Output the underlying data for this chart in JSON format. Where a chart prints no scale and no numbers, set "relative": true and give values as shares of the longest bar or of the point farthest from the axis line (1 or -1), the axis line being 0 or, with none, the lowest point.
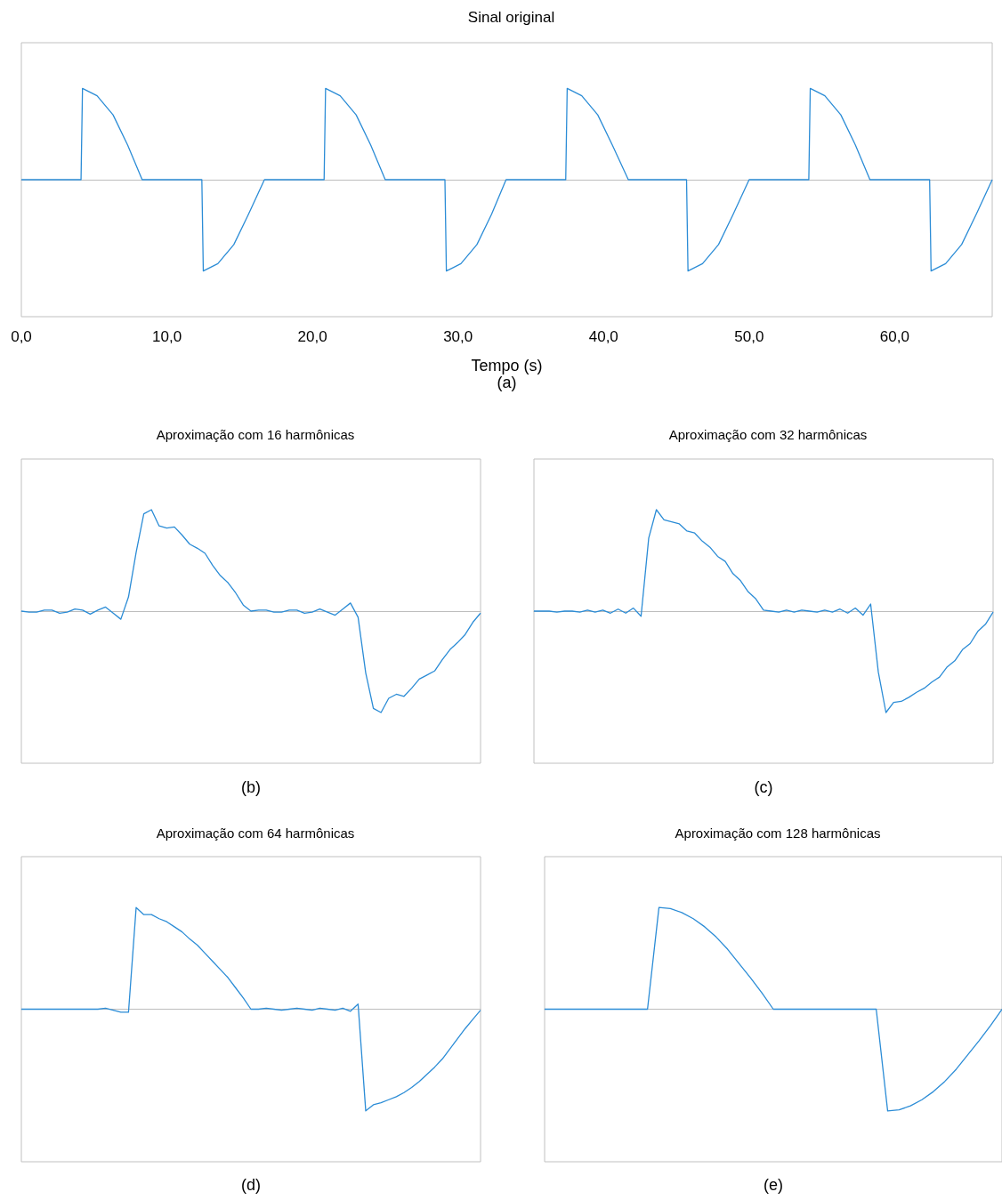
{
  "chart_data": [
    {
      "type": "line",
      "title": "Sinal original",
      "xlabel": "Tempo (s)",
      "annotations": [
        "(a)"
      ],
      "relative": true,
      "tick_labels": "x",
      "color": "#2b8cd6",
      "xlim": [
        0,
        66.7
      ],
      "xticks": [
        {
          "value": 0,
          "label": "0,0"
        },
        {
          "value": 10,
          "label": "10,0"
        },
        {
          "value": 20,
          "label": "20,0"
        },
        {
          "value": 30,
          "label": "30,0"
        },
        {
          "value": 40,
          "label": "40,0"
        },
        {
          "value": 50,
          "label": "50,0"
        },
        {
          "value": 60,
          "label": "60,0"
        }
      ],
      "x": [
        0,
        4.1,
        4.2,
        5.2,
        6.3,
        7.3,
        8.3,
        12.4,
        12.5,
        13.5,
        14.6,
        15.6,
        16.7,
        20.8,
        20.9,
        21.9,
        23.0,
        24.0,
        25.0,
        29.1,
        29.2,
        30.2,
        31.3,
        32.3,
        33.3,
        37.4,
        37.5,
        38.5,
        39.6,
        40.6,
        41.7,
        45.7,
        45.8,
        46.8,
        47.9,
        48.9,
        50.0,
        54.1,
        54.2,
        55.2,
        56.3,
        57.3,
        58.3,
        62.4,
        62.5,
        63.5,
        64.6,
        65.6,
        66.7
      ],
      "values": [
        0,
        0,
        1,
        0.92,
        0.71,
        0.38,
        0,
        0,
        -1,
        -0.92,
        -0.71,
        -0.38,
        0,
        0,
        1,
        0.92,
        0.71,
        0.38,
        0,
        0,
        -1,
        -0.92,
        -0.71,
        -0.38,
        0,
        0,
        1,
        0.92,
        0.71,
        0.38,
        0,
        0,
        -1,
        -0.92,
        -0.71,
        -0.38,
        0,
        0,
        1,
        0.92,
        0.71,
        0.38,
        0,
        0,
        -1,
        -0.92,
        -0.71,
        -0.38,
        0
      ]
    },
    {
      "type": "line",
      "title": "Aproximação com 16 harmônicas",
      "annotations": [
        "(b)"
      ],
      "relative": true,
      "tick_labels": false,
      "color": "#2b8cd6",
      "categories": [
        null,
        null,
        null,
        null,
        null,
        null,
        null,
        null,
        null,
        null,
        null,
        null,
        null,
        null,
        null,
        null,
        null,
        null,
        null,
        null,
        null,
        null,
        null,
        null,
        null,
        null,
        null,
        null,
        null,
        null,
        null,
        null,
        null,
        null,
        null,
        null,
        null,
        null,
        null,
        null,
        null,
        null,
        null,
        null,
        null,
        null,
        null,
        null,
        null,
        null,
        null,
        null,
        null,
        null,
        null,
        null,
        null,
        null,
        null,
        null,
        null
      ],
      "values": [
        0,
        -0.01,
        -0.01,
        0.01,
        0.01,
        -0.02,
        -0.01,
        0.02,
        0.01,
        -0.03,
        0.01,
        0.04,
        -0.02,
        -0.08,
        0.14,
        0.58,
        0.96,
        1,
        0.84,
        0.82,
        0.83,
        0.75,
        0.66,
        0.62,
        0.57,
        0.45,
        0.35,
        0.28,
        0.18,
        0.06,
        0,
        0.01,
        0.01,
        -0.01,
        -0.01,
        0.01,
        0.01,
        -0.02,
        -0.01,
        0.02,
        -0.01,
        -0.04,
        0.02,
        0.08,
        -0.06,
        -0.61,
        -0.96,
        -1,
        -0.86,
        -0.82,
        -0.84,
        -0.76,
        -0.67,
        -0.63,
        -0.59,
        -0.48,
        -0.38,
        -0.31,
        -0.23,
        -0.11,
        -0.02
      ]
    },
    {
      "type": "line",
      "title": "Aproximação com 32 harmônicas",
      "annotations": [
        "(c)"
      ],
      "relative": true,
      "tick_labels": false,
      "color": "#2b8cd6",
      "categories": [
        null,
        null,
        null,
        null,
        null,
        null,
        null,
        null,
        null,
        null,
        null,
        null,
        null,
        null,
        null,
        null,
        null,
        null,
        null,
        null,
        null,
        null,
        null,
        null,
        null,
        null,
        null,
        null,
        null,
        null,
        null,
        null,
        null,
        null,
        null,
        null,
        null,
        null,
        null,
        null,
        null,
        null,
        null,
        null,
        null,
        null,
        null,
        null,
        null,
        null,
        null,
        null,
        null,
        null,
        null,
        null,
        null,
        null,
        null,
        null,
        null
      ],
      "values": [
        0,
        0,
        0,
        -0.01,
        0,
        0,
        -0.01,
        0.01,
        -0.01,
        0.01,
        -0.02,
        0.02,
        -0.02,
        0.03,
        -0.05,
        0.72,
        1,
        0.9,
        0.88,
        0.86,
        0.79,
        0.77,
        0.69,
        0.63,
        0.54,
        0.49,
        0.37,
        0.3,
        0.19,
        0.12,
        0.01,
        0,
        -0.01,
        0.01,
        -0.01,
        0.01,
        0,
        -0.01,
        0.01,
        -0.01,
        0.02,
        -0.02,
        0.03,
        -0.04,
        0.07,
        -0.6,
        -1,
        -0.9,
        -0.89,
        -0.85,
        -0.8,
        -0.76,
        -0.7,
        -0.65,
        -0.55,
        -0.49,
        -0.38,
        -0.32,
        -0.2,
        -0.13,
        -0.01
      ]
    },
    {
      "type": "line",
      "title": "Aproximação com 64 harmônicas",
      "annotations": [
        "(d)"
      ],
      "relative": true,
      "tick_labels": false,
      "color": "#2b8cd6",
      "categories": [
        null,
        null,
        null,
        null,
        null,
        null,
        null,
        null,
        null,
        null,
        null,
        null,
        null,
        null,
        null,
        null,
        null,
        null,
        null,
        null,
        null,
        null,
        null,
        null,
        null,
        null,
        null,
        null,
        null,
        null,
        null,
        null,
        null,
        null,
        null,
        null,
        null,
        null,
        null,
        null,
        null,
        null,
        null,
        null,
        null,
        null,
        null,
        null,
        null,
        null,
        null,
        null,
        null,
        null,
        null,
        null,
        null,
        null,
        null,
        null,
        null
      ],
      "values": [
        0,
        0,
        0,
        0,
        0,
        0,
        0,
        0,
        0,
        0,
        0,
        0.01,
        -0.01,
        -0.03,
        -0.03,
        1,
        0.93,
        0.93,
        0.89,
        0.86,
        0.81,
        0.76,
        0.69,
        0.63,
        0.55,
        0.47,
        0.39,
        0.31,
        0.21,
        0.11,
        0,
        0,
        0.01,
        0,
        -0.01,
        0,
        0.01,
        0,
        -0.01,
        0.01,
        0,
        -0.01,
        0.01,
        -0.02,
        0.05,
        -1,
        -0.94,
        -0.92,
        -0.89,
        -0.86,
        -0.82,
        -0.77,
        -0.71,
        -0.64,
        -0.57,
        -0.49,
        -0.39,
        -0.29,
        -0.19,
        -0.1,
        -0.01
      ]
    },
    {
      "type": "line",
      "title": "Aproximação com 128 harmônicas",
      "annotations": [
        "(e)"
      ],
      "relative": true,
      "tick_labels": false,
      "color": "#2b8cd6",
      "categories": [
        null,
        null,
        null,
        null,
        null,
        null,
        null,
        null,
        null,
        null,
        null,
        null,
        null,
        null,
        null,
        null,
        null,
        null,
        null,
        null,
        null,
        null,
        null,
        null,
        null,
        null,
        null,
        null,
        null,
        null,
        null,
        null,
        null,
        null,
        null,
        null,
        null,
        null,
        null,
        null,
        null
      ],
      "values": [
        0,
        0,
        0,
        0,
        0,
        0,
        0,
        0,
        0,
        0,
        1,
        0.99,
        0.95,
        0.89,
        0.81,
        0.71,
        0.59,
        0.45,
        0.31,
        0.16,
        0,
        0,
        0,
        0,
        0,
        0,
        0,
        0,
        0,
        0,
        -1,
        -0.99,
        -0.95,
        -0.89,
        -0.81,
        -0.71,
        -0.59,
        -0.45,
        -0.31,
        -0.16,
        0
      ]
    }
  ]
}
